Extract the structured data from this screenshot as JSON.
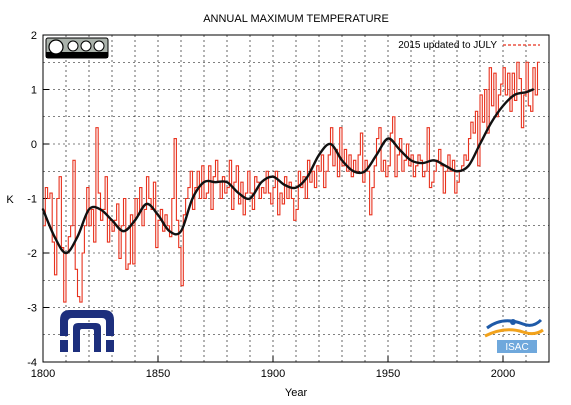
{
  "chart_data": {
    "type": "line",
    "title": "ANNUAL MAXIMUM TEMPERATURE",
    "xlabel": "Year",
    "ylabel": "K",
    "xlim": [
      1800,
      2020
    ],
    "ylim": [
      -4,
      2
    ],
    "x_ticks": [
      1800,
      1850,
      1900,
      1950,
      2000
    ],
    "y_ticks": [
      -4,
      -3,
      -2,
      -1,
      0,
      1,
      2
    ],
    "grid": true,
    "legend_position": "top-right",
    "legend": {
      "label": "2015 updated to JULY"
    },
    "series": [
      {
        "name": "2015 updated to JULY",
        "style": "dashed",
        "color": "#e8321e",
        "x_start": 1800,
        "x_end": 2015,
        "values": [
          -1.5,
          -0.8,
          -1.0,
          -0.9,
          -1.8,
          -2.4,
          -1.0,
          -0.6,
          -1.9,
          -2.9,
          -2.0,
          -1.7,
          -1.5,
          -0.3,
          -2.3,
          -2.8,
          -2.9,
          -2.0,
          -1.5,
          -0.8,
          -1.5,
          -1.2,
          -1.8,
          0.3,
          -0.9,
          -1.4,
          -1.2,
          -0.6,
          -1.8,
          -1.4,
          -1.6,
          -1.4,
          -1.1,
          -2.1,
          -1.5,
          -1.0,
          -2.3,
          -2.2,
          -1.3,
          -2.2,
          -1.0,
          -1.3,
          -0.8,
          -1.5,
          -1.2,
          -0.6,
          -1.0,
          -1.2,
          -0.7,
          -1.9,
          -1.4,
          -1.2,
          -1.6,
          -1.3,
          -1.5,
          -1.7,
          -1.0,
          0.1,
          -1.4,
          -1.9,
          -2.6,
          -1.3,
          -1.0,
          -0.8,
          -0.5,
          -1.2,
          -0.8,
          -0.5,
          -1.0,
          -0.4,
          -1.0,
          -0.9,
          -0.4,
          -1.2,
          -0.6,
          -0.3,
          -0.7,
          -1.0,
          -0.6,
          -0.9,
          -0.8,
          -0.3,
          -1.2,
          -0.7,
          -0.4,
          -1.1,
          -0.7,
          -1.3,
          -0.9,
          -0.5,
          -0.9,
          -1.2,
          -0.6,
          -0.7,
          -1.0,
          -0.8,
          -0.9,
          -0.5,
          -0.9,
          -1.1,
          -0.8,
          -0.5,
          -1.3,
          -0.9,
          -1.1,
          -0.6,
          -1.0,
          -0.7,
          -1.0,
          -1.4,
          -1.2,
          -0.5,
          -0.8,
          -0.6,
          -1.0,
          -0.3,
          -0.7,
          -0.5,
          -0.8,
          -0.4,
          -0.5,
          -0.2,
          -0.8,
          -0.5,
          -0.2,
          0.3,
          -0.4,
          -0.1,
          -0.6,
          0.3,
          -0.4,
          -0.1,
          -0.5,
          -0.2,
          -0.6,
          -0.3,
          -0.5,
          -0.2,
          0.2,
          -0.7,
          -0.3,
          -0.5,
          -1.3,
          -0.8,
          -0.4,
          0.1,
          0.3,
          -0.5,
          -0.3,
          -0.6,
          -0.4,
          0.2,
          0.5,
          -0.6,
          -0.2,
          0.1,
          -0.5,
          -0.3,
          0.0,
          -0.4,
          -0.2,
          -0.6,
          -0.4,
          -0.2,
          -0.3,
          -0.6,
          -0.5,
          0.3,
          -0.8,
          -0.7,
          -0.5,
          -0.3,
          -0.1,
          -0.4,
          -0.9,
          -0.5,
          -0.2,
          -0.5,
          -0.3,
          -0.9,
          -0.7,
          -0.5,
          -0.4,
          -0.2,
          -0.3,
          0.1,
          0.4,
          0.2,
          0.6,
          -0.4,
          0.9,
          0.4,
          1.0,
          0.2,
          1.4,
          0.7,
          1.3,
          0.5,
          0.9,
          1.1,
          1.4,
          0.9,
          1.3,
          0.6,
          1.3,
          0.8,
          1.5,
          1.2,
          0.3,
          0.9,
          1.5,
          0.7,
          0.6,
          1.4,
          0.9,
          1.5
        ]
      },
      {
        "name": "",
        "style": "smoothed",
        "color": "#111111",
        "x": [
          1800,
          1805,
          1810,
          1815,
          1820,
          1825,
          1830,
          1835,
          1840,
          1845,
          1850,
          1855,
          1860,
          1865,
          1870,
          1875,
          1880,
          1885,
          1890,
          1895,
          1900,
          1905,
          1910,
          1915,
          1920,
          1925,
          1930,
          1935,
          1940,
          1945,
          1950,
          1955,
          1960,
          1965,
          1970,
          1975,
          1980,
          1985,
          1990,
          1995,
          2000,
          2005,
          2010,
          2013
        ],
        "values": [
          -1.2,
          -1.7,
          -2.0,
          -1.7,
          -1.2,
          -1.2,
          -1.4,
          -1.6,
          -1.4,
          -1.1,
          -1.3,
          -1.6,
          -1.6,
          -1.0,
          -0.7,
          -0.7,
          -0.7,
          -0.9,
          -1.0,
          -0.7,
          -0.6,
          -0.75,
          -0.8,
          -0.6,
          -0.2,
          0.0,
          -0.3,
          -0.5,
          -0.5,
          -0.2,
          0.1,
          -0.1,
          -0.3,
          -0.35,
          -0.3,
          -0.4,
          -0.5,
          -0.4,
          0.0,
          0.4,
          0.7,
          0.9,
          0.95,
          1.0
        ]
      }
    ]
  }
}
